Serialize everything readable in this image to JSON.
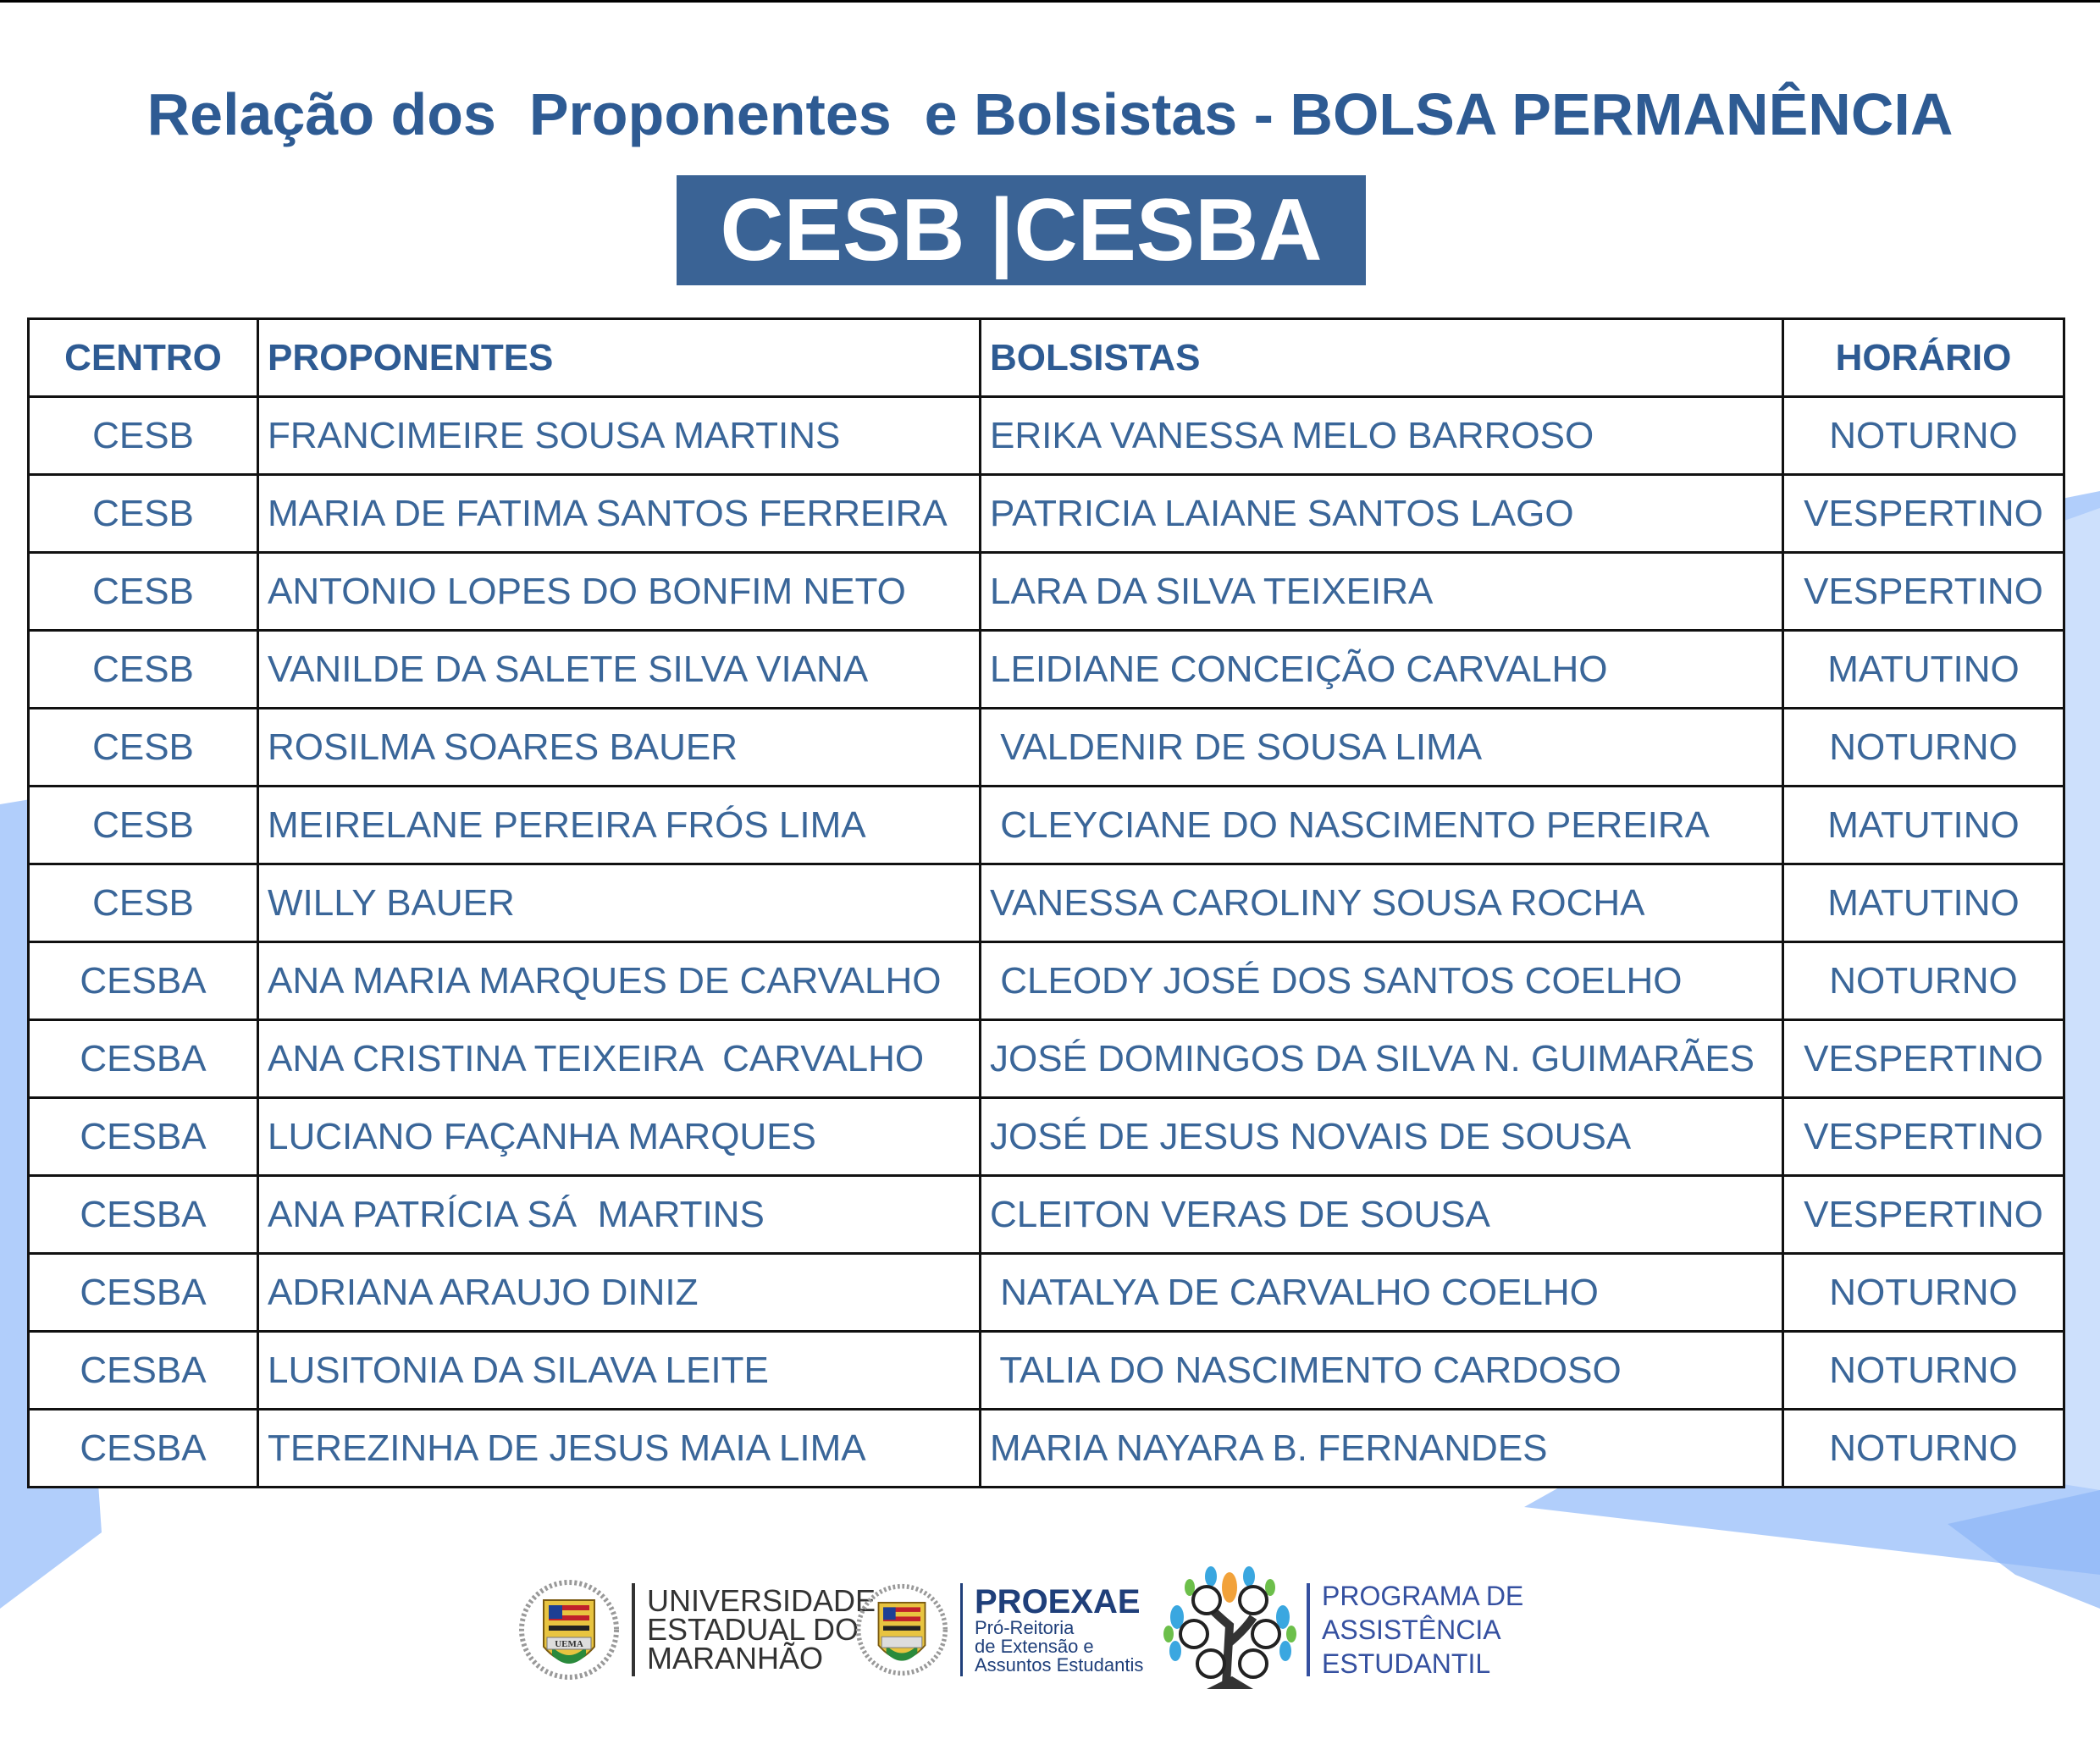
{
  "title": "Relação dos  Proponentes  e Bolsistas - BOLSA PERMANÊNCIA",
  "banner": "CESB |CESBA",
  "table": {
    "headers": [
      "CENTRO",
      "PROPONENTES",
      "BOLSISTAS",
      "HORÁRIO"
    ],
    "rows": [
      [
        "CESB",
        "FRANCIMEIRE SOUSA MARTINS",
        "ERIKA VANESSA MELO BARROSO",
        "NOTURNO"
      ],
      [
        "CESB",
        "MARIA DE FATIMA SANTOS FERREIRA",
        "PATRICIA LAIANE SANTOS LAGO",
        "VESPERTINO"
      ],
      [
        "CESB",
        "ANTONIO LOPES DO BONFIM NETO",
        "LARA DA SILVA TEIXEIRA",
        "VESPERTINO"
      ],
      [
        "CESB",
        "VANILDE DA SALETE SILVA VIANA",
        "LEIDIANE CONCEIÇÃO CARVALHO",
        "MATUTINO"
      ],
      [
        "CESB",
        "ROSILMA SOARES BAUER",
        " VALDENIR DE SOUSA LIMA",
        "NOTURNO"
      ],
      [
        "CESB",
        "MEIRELANE PEREIRA FRÓS LIMA",
        " CLEYCIANE DO NASCIMENTO PEREIRA",
        "MATUTINO"
      ],
      [
        "CESB",
        "WILLY BAUER",
        "VANESSA CAROLINY SOUSA ROCHA",
        "MATUTINO"
      ],
      [
        "CESBA",
        "ANA MARIA MARQUES DE CARVALHO",
        " CLEODY JOSÉ DOS SANTOS COELHO",
        "NOTURNO"
      ],
      [
        "CESBA",
        "ANA CRISTINA TEIXEIRA  CARVALHO",
        "JOSÉ DOMINGOS DA SILVA N. GUIMARÃES",
        "VESPERTINO"
      ],
      [
        "CESBA",
        "LUCIANO FAÇANHA MARQUES",
        "JOSÉ DE JESUS NOVAIS DE SOUSA",
        "VESPERTINO"
      ],
      [
        "CESBA",
        "ANA PATRÍCIA SÁ  MARTINS",
        "CLEITON VERAS DE SOUSA",
        "VESPERTINO"
      ],
      [
        "CESBA",
        "ADRIANA ARAUJO DINIZ",
        " NATALYA DE CARVALHO COELHO",
        "NOTURNO"
      ],
      [
        "CESBA",
        "LUSITONIA DA SILAVA LEITE",
        " TALIA DO NASCIMENTO CARDOSO",
        "NOTURNO"
      ],
      [
        "CESBA",
        "TEREZINHA DE JESUS MAIA LIMA",
        "MARIA NAYARA B. FERNANDES",
        "NOTURNO"
      ]
    ]
  },
  "footer": {
    "uema": [
      "UNIVERSIDADE",
      "ESTADUAL DO",
      "MARANHÃO"
    ],
    "uema_seal_text": "UEMA",
    "proexae_title": "PROEXAE",
    "proexae_sub": [
      "Pró-Reitoria",
      "de Extensão e",
      "Assuntos Estudantis"
    ],
    "programa": [
      "PROGRAMA DE",
      "ASSISTÊNCIA",
      "ESTUDANTIL"
    ]
  },
  "colors": {
    "title": "#2e5b93",
    "banner": "#3a6395",
    "cell_text": "#3a6699",
    "background_shape": "#9fc3fb"
  }
}
